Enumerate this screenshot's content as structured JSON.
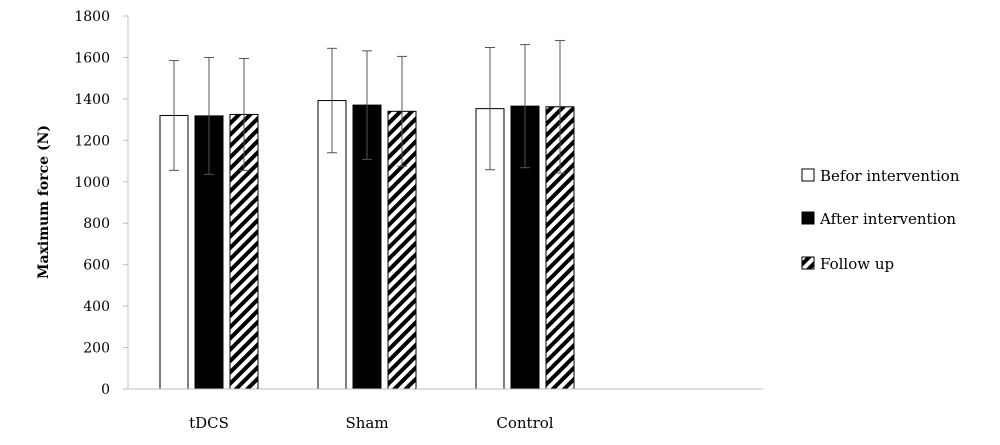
{
  "chart_data": {
    "type": "bar",
    "title": "",
    "xlabel": "",
    "ylabel": "Maximum force (N)",
    "ylim": [
      0,
      1800
    ],
    "yticks": [
      0,
      200,
      400,
      600,
      800,
      1000,
      1200,
      1400,
      1600,
      1800
    ],
    "categories": [
      "tDCS",
      "Sham",
      "Control"
    ],
    "grid": false,
    "legend_position": "right",
    "series": [
      {
        "name": "Befor intervention",
        "fill": "white",
        "values": [
          1320,
          1392,
          1353
        ],
        "error": [
          265,
          252,
          295
        ]
      },
      {
        "name": "After intervention",
        "fill": "black",
        "values": [
          1318,
          1370,
          1365
        ],
        "error": [
          282,
          262,
          297
        ]
      },
      {
        "name": "Follow up",
        "fill": "hatch",
        "values": [
          1325,
          1340,
          1362
        ],
        "error": [
          270,
          265,
          320
        ]
      }
    ]
  }
}
